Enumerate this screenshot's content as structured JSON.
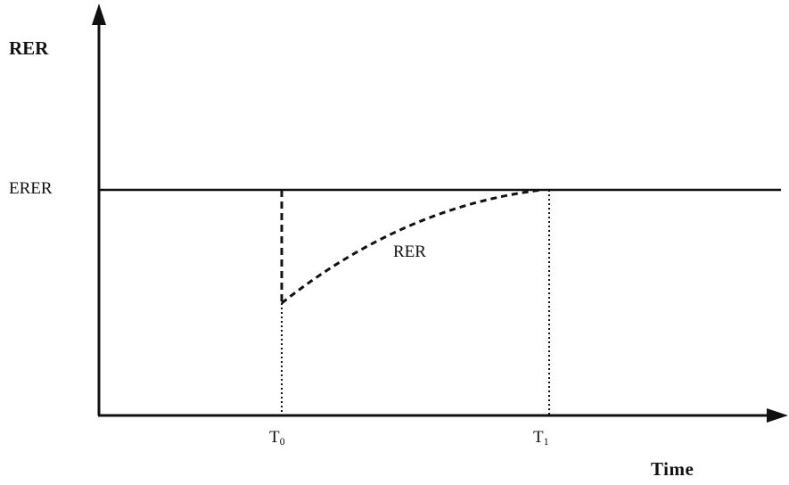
{
  "y_axis_label": "RER",
  "x_axis_label": "Time",
  "level_label": "ERER",
  "curve_label": "RER",
  "ticks": [
    {
      "base": "T",
      "sub": "0"
    },
    {
      "base": "T",
      "sub": "1"
    }
  ],
  "colors": {
    "line": "#111111",
    "background": "#ffffff"
  }
}
